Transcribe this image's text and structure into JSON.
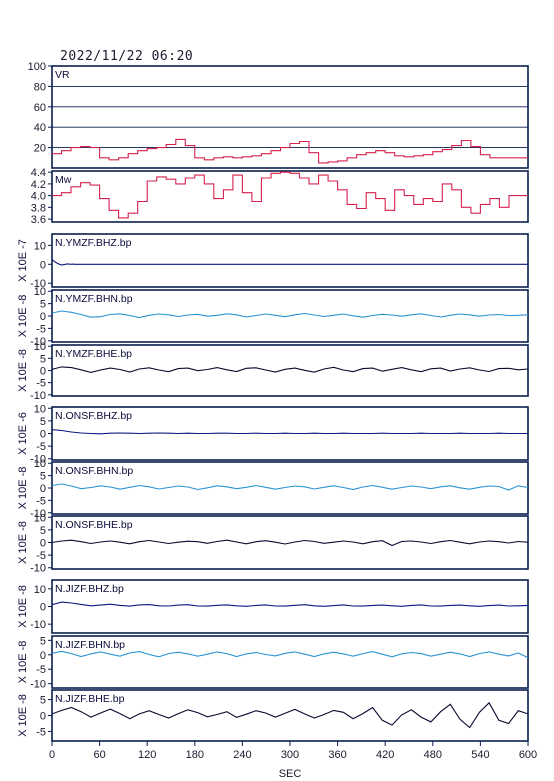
{
  "header": {
    "timestamp": "2022/11/22 06:20"
  },
  "colors": {
    "frame": "#0a1e4e",
    "vr": "#d6214f",
    "mw": "#d6214f",
    "bhz": "#0c1880",
    "bhn": "#2a93d4",
    "bhe": "#0a0a30"
  },
  "chart_data": [
    {
      "type": "line",
      "label": "VR",
      "ylabel": "",
      "yticks": [
        "20",
        "40",
        "60",
        "80",
        "100"
      ],
      "ylim": [
        0,
        100
      ],
      "series": [
        {
          "values": [
            14,
            17,
            20,
            21,
            20,
            10,
            8,
            10,
            14,
            17,
            19,
            20,
            23,
            28,
            22,
            10,
            8,
            10,
            11,
            10,
            11,
            12,
            14,
            17,
            20,
            24,
            26,
            15,
            5,
            6,
            7,
            10,
            13,
            15,
            17,
            15,
            12,
            11,
            12,
            13,
            16,
            18,
            22,
            27,
            21,
            13,
            10,
            10,
            10,
            10
          ]
        }
      ]
    },
    {
      "type": "line",
      "label": "Mw",
      "ylabel": "",
      "yticks": [
        "3.6",
        "3.8",
        "4.0",
        "4.2",
        "4.4"
      ],
      "ylim": [
        3.55,
        4.42
      ],
      "series": [
        {
          "values": [
            4.0,
            4.05,
            4.15,
            4.22,
            4.18,
            3.95,
            3.75,
            3.62,
            3.7,
            3.9,
            4.25,
            4.32,
            4.28,
            4.2,
            4.3,
            4.35,
            4.2,
            3.95,
            4.1,
            4.35,
            4.05,
            3.9,
            4.3,
            4.38,
            4.4,
            4.38,
            4.3,
            4.2,
            4.35,
            4.25,
            4.1,
            3.85,
            3.78,
            4.05,
            3.95,
            3.75,
            4.1,
            4.0,
            3.85,
            3.95,
            3.9,
            4.2,
            4.1,
            3.8,
            3.7,
            3.85,
            3.95,
            3.8,
            4.0,
            4.0
          ]
        }
      ]
    },
    {
      "type": "line",
      "label": "N.YMZF.BHZ.bp",
      "ylabel": "X 10E -7",
      "yticks": [
        "-10",
        "0",
        "10"
      ],
      "ylim": [
        -12,
        16
      ],
      "time_span": [
        0,
        60
      ],
      "series": [
        {
          "values": [
            2.5,
            1.8,
            1.0,
            0.4,
            0,
            -0.3,
            -0.2,
            0,
            0.2,
            0.1,
            0,
            0.1,
            0,
            0,
            0,
            0,
            0,
            0,
            0,
            0,
            0,
            0,
            0,
            0,
            0,
            0
          ]
        }
      ]
    },
    {
      "type": "line",
      "label": "N.YMZF.BHN.bp",
      "ylabel": "X 10E -8",
      "yticks": [
        "-10",
        "-5",
        "0",
        "5",
        "10"
      ],
      "ylim": [
        -10.5,
        10.5
      ],
      "series": [
        {
          "values": [
            1.2,
            2.0,
            1.5,
            0.6,
            -0.5,
            -0.3,
            0.6,
            0.9,
            0.2,
            -0.6,
            0.3,
            0.8,
            0.5,
            -0.2,
            0.4,
            0.7,
            -0.1,
            0.3,
            0.9,
            0.5,
            -0.4,
            0.2,
            0.8,
            0.3,
            -0.3,
            0.5,
            1.0,
            0.4,
            -0.2,
            0.3,
            0.8,
            0.1,
            -0.5,
            0.2,
            0.7,
            0.4,
            -0.1,
            0.5,
            0.9,
            0.2,
            -0.4,
            0.3,
            0.8,
            0.5,
            -0.1,
            0.4,
            0.6,
            0.2,
            0.3,
            0.5
          ]
        }
      ]
    },
    {
      "type": "line",
      "label": "N.YMZF.BHE.bp",
      "ylabel": "X 10E -8",
      "yticks": [
        "-10",
        "-5",
        "0",
        "5",
        "10"
      ],
      "ylim": [
        -10.5,
        10.5
      ],
      "series": [
        {
          "values": [
            0.5,
            1.5,
            1.2,
            0.3,
            -0.8,
            0.2,
            1.0,
            0.4,
            -0.6,
            0.6,
            1.1,
            0.2,
            -0.5,
            0.8,
            1.0,
            -0.1,
            0.4,
            1.2,
            0.3,
            -0.4,
            0.9,
            1.1,
            0.2,
            -0.6,
            0.5,
            1.0,
            0.1,
            -0.7,
            0.6,
            1.3,
            0.2,
            -0.5,
            0.8,
            1.0,
            -0.3,
            0.5,
            1.2,
            0.3,
            -0.5,
            0.7,
            1.0,
            -0.2,
            0.6,
            1.1,
            0.2,
            -0.4,
            0.8,
            0.9,
            0.3,
            0.6
          ]
        }
      ]
    },
    {
      "type": "line",
      "label": "N.ONSF.BHZ.bp",
      "ylabel": "X 10E -6",
      "yticks": [
        "-10",
        "-5",
        "0",
        "5",
        "10"
      ],
      "ylim": [
        -10.5,
        10.5
      ],
      "series": [
        {
          "values": [
            1.5,
            1.2,
            0.6,
            0.2,
            0,
            -0.1,
            0.1,
            0.2,
            0.1,
            0,
            0.1,
            0.2,
            0.1,
            0,
            0.1,
            0,
            0,
            0.1,
            0.1,
            0,
            0,
            0.1,
            0,
            0,
            0.1,
            0,
            0,
            0.1,
            0,
            0,
            0.1,
            0,
            0,
            0,
            0.1,
            0,
            0,
            0,
            0.1,
            0,
            0,
            0,
            0.1,
            0,
            0,
            0,
            0.1,
            0,
            0,
            0
          ]
        }
      ]
    },
    {
      "type": "line",
      "label": "N.ONSF.BHN.bp",
      "ylabel": "X 10E -8",
      "yticks": [
        "-10",
        "-5",
        "0",
        "5",
        "10"
      ],
      "ylim": [
        -10.5,
        10.5
      ],
      "series": [
        {
          "values": [
            1.0,
            1.6,
            0.8,
            -0.3,
            0.2,
            0.9,
            0.4,
            -0.5,
            0.3,
            1.0,
            0.5,
            -0.4,
            0.2,
            0.8,
            0.4,
            -0.6,
            0.1,
            0.9,
            0.5,
            -0.3,
            0.3,
            1.0,
            0.3,
            -0.5,
            0.2,
            0.8,
            0.5,
            -0.4,
            0.3,
            0.9,
            0.2,
            -0.6,
            0.4,
            1.0,
            0.3,
            -0.5,
            0.2,
            0.8,
            0.4,
            -0.3,
            0.5,
            0.9,
            0.1,
            -0.5,
            0.3,
            0.8,
            0.6,
            -0.8,
            0.9,
            0.2
          ]
        }
      ]
    },
    {
      "type": "line",
      "label": "N.ONSF.BHE.bp",
      "ylabel": "X 10E -8",
      "yticks": [
        "-10",
        "-5",
        "0",
        "5",
        "10"
      ],
      "ylim": [
        -10.5,
        10.5
      ],
      "series": [
        {
          "values": [
            0,
            0.6,
            0.9,
            0.3,
            -0.4,
            0.2,
            0.6,
            0.1,
            -0.5,
            0.3,
            0.8,
            0.2,
            -0.4,
            0.1,
            0.5,
            0.3,
            -0.3,
            0.4,
            0.9,
            0.2,
            -0.5,
            0.3,
            0.7,
            0.1,
            -0.6,
            0.2,
            0.8,
            0.4,
            -0.3,
            0.1,
            0.6,
            0.2,
            -0.5,
            0.3,
            0.7,
            -1.2,
            0.4,
            0.6,
            0.2,
            -0.4,
            0.3,
            0.8,
            0.1,
            -0.5,
            0.2,
            0.6,
            0.3,
            -0.2,
            0.4,
            0.1
          ]
        }
      ]
    },
    {
      "type": "line",
      "label": "N.JIZF.BHZ.bp",
      "ylabel": "X 10E -8",
      "yticks": [
        "-10",
        "0",
        "10"
      ],
      "ylim": [
        -15,
        15
      ],
      "series": [
        {
          "values": [
            1.0,
            2.5,
            2.0,
            1.2,
            0.4,
            0.8,
            1.3,
            0.6,
            0.2,
            0.9,
            1.1,
            0.4,
            0.3,
            0.8,
            1.0,
            0.3,
            0.2,
            0.7,
            0.9,
            0.4,
            0.1,
            0.6,
            0.9,
            0.3,
            0.2,
            0.7,
            1.0,
            0.4,
            0.1,
            0.5,
            0.9,
            0.3,
            0.2,
            0.6,
            0.8,
            0.4,
            0.1,
            0.6,
            0.9,
            0.3,
            0.2,
            0.6,
            0.8,
            0.4,
            0.1,
            0.5,
            0.8,
            0.3,
            0.4,
            0.6
          ]
        }
      ]
    },
    {
      "type": "line",
      "label": "N.JIZF.BHN.bp",
      "ylabel": "X 10E -8",
      "yticks": [
        "-10",
        "-5",
        "0",
        "5"
      ],
      "ylim": [
        -11.5,
        6.5
      ],
      "series": [
        {
          "values": [
            0.5,
            1.2,
            0.4,
            -0.6,
            0.3,
            1.0,
            0.2,
            -0.5,
            0.6,
            1.1,
            0.1,
            -0.7,
            0.4,
            0.9,
            0.3,
            -0.5,
            0.2,
            1.0,
            0.4,
            -0.6,
            0.3,
            0.8,
            0.1,
            -0.4,
            0.5,
            1.0,
            0.2,
            -0.6,
            0.3,
            0.9,
            0.3,
            -0.5,
            0.4,
            1.1,
            0.2,
            -0.7,
            0.3,
            0.8,
            0.4,
            -0.5,
            0.2,
            0.9,
            0.3,
            -0.6,
            0.4,
            1.0,
            0.2,
            -0.4,
            0.6,
            -1.0
          ]
        }
      ]
    },
    {
      "type": "line",
      "label": "N.JIZF.BHE.bp",
      "ylabel": "X 10E -8",
      "yticks": [
        "-5",
        "0",
        "5"
      ],
      "ylim": [
        -8,
        8
      ],
      "series": [
        {
          "values": [
            0.5,
            1.6,
            2.5,
            1.2,
            -0.5,
            0.8,
            2.0,
            0.6,
            -1.0,
            0.5,
            1.5,
            0.3,
            -0.8,
            0.6,
            1.8,
            0.9,
            -0.4,
            0.3,
            1.2,
            -0.6,
            0.4,
            1.5,
            0.8,
            -0.5,
            0.7,
            1.9,
            0.5,
            -0.8,
            0.3,
            1.6,
            1.0,
            -1.0,
            0.6,
            2.5,
            -1.5,
            -3.0,
            0.2,
            1.8,
            -0.5,
            -2.0,
            1.2,
            3.5,
            -1.2,
            -3.8,
            1.0,
            4.0,
            -1.5,
            -2.5,
            1.5,
            0.5
          ]
        }
      ]
    }
  ],
  "x_axis": {
    "label": "SEC",
    "ticks": [
      "0",
      "60",
      "120",
      "180",
      "240",
      "300",
      "360",
      "420",
      "480",
      "540",
      "600"
    ],
    "xlim": [
      0,
      600
    ]
  }
}
